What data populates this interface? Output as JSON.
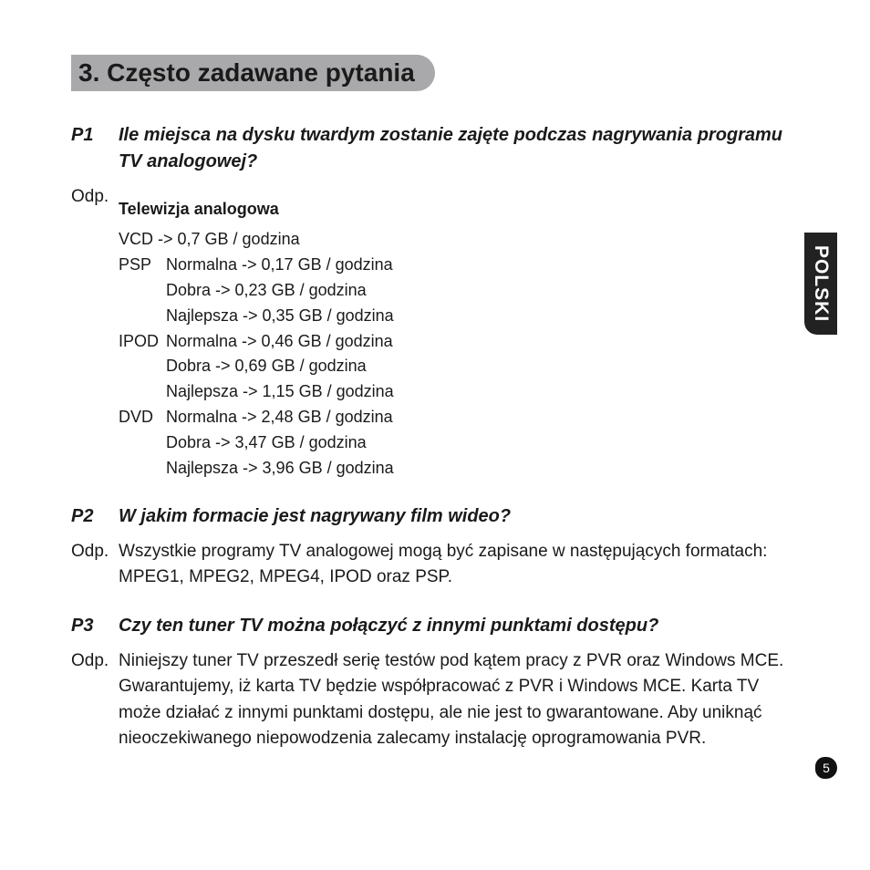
{
  "section": {
    "title": "3. Często zadawane pytania"
  },
  "faq": [
    {
      "num": "P1",
      "question": "Ile miejsca na dysku twardym zostanie zajęte podczas nagrywania programu TV analogowej?",
      "answer_label": "Odp.",
      "answer_text": "",
      "sub_heading": "Telewizja analogowa",
      "vcd_line": "VCD -> 0,7 GB / godzina",
      "formats": [
        {
          "label": "PSP",
          "lines": [
            "Normalna -> 0,17 GB / godzina",
            "Dobra -> 0,23 GB / godzina",
            "Najlepsza -> 0,35 GB / godzina"
          ]
        },
        {
          "label": "IPOD",
          "lines": [
            "Normalna -> 0,46 GB / godzina",
            "Dobra -> 0,69 GB / godzina",
            "Najlepsza -> 1,15 GB / godzina"
          ]
        },
        {
          "label": "DVD",
          "lines": [
            "Normalna -> 2,48 GB / godzina",
            "Dobra -> 3,47 GB / godzina",
            "Najlepsza -> 3,96 GB / godzina"
          ]
        }
      ]
    },
    {
      "num": "P2",
      "question": "W jakim formacie jest nagrywany film wideo?",
      "answer_label": "Odp.",
      "answer_text": "Wszystkie programy TV analogowej mogą być zapisane w następujących formatach: MPEG1, MPEG2, MPEG4, IPOD oraz PSP."
    },
    {
      "num": "P3",
      "question": "Czy ten tuner TV można połączyć z innymi punktami dostępu?",
      "answer_label": "Odp.",
      "answer_text": "Niniejszy tuner TV przeszedł serię testów pod kątem pracy z PVR oraz Windows MCE. Gwarantujemy, iż karta TV będzie współpracować z PVR i Windows MCE. Karta TV może działać z innymi punktami dostępu, ale nie jest to gwarantowane. Aby uniknąć nieoczekiwanego niepowodzenia zalecamy instalację oprogramowania PVR."
    }
  ],
  "side_tab": "POLSKI",
  "page_number": "5",
  "colors": {
    "title_bg": "#a9a9ab",
    "text": "#1a1a1a",
    "tab_bg": "#222222",
    "tab_text": "#ffffff",
    "page_bg": "#ffffff"
  },
  "typography": {
    "title_fontsize": 28,
    "question_fontsize": 20,
    "body_fontsize": 19,
    "data_fontsize": 18,
    "tab_fontsize": 21
  }
}
